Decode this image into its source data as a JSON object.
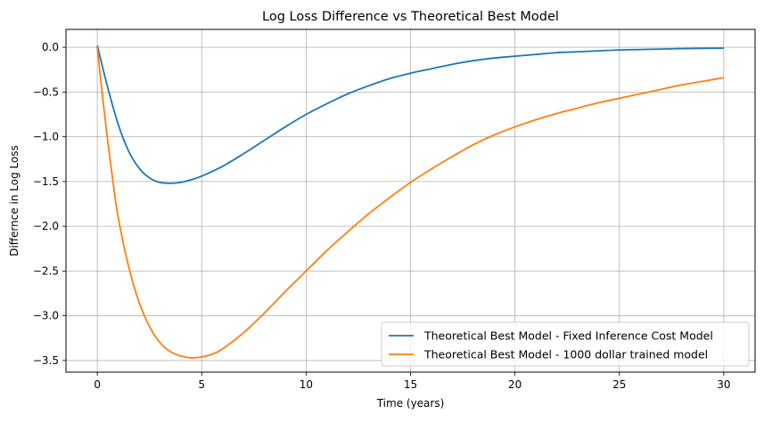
{
  "chart_data": {
    "type": "line",
    "title": "Log Loss Difference vs Theoretical Best Model",
    "xlabel": "Time (years)",
    "ylabel": "Differnce in Log Loss",
    "xlim": [
      -1.5,
      31.5
    ],
    "ylim": [
      -3.63,
      0.2
    ],
    "x_ticks": [
      0,
      5,
      10,
      15,
      20,
      25,
      30
    ],
    "x_tick_labels": [
      "0",
      "5",
      "10",
      "15",
      "20",
      "25",
      "30"
    ],
    "y_ticks": [
      0.0,
      -0.5,
      -1.0,
      -1.5,
      -2.0,
      -2.5,
      -3.0,
      -3.5
    ],
    "y_tick_labels": [
      "0.0",
      "−0.5",
      "−1.0",
      "−1.5",
      "−2.0",
      "−2.5",
      "−3.0",
      "−3.5"
    ],
    "grid": true,
    "legend_position": "lower-right",
    "series": [
      {
        "name": "Theoretical Best Model - Fixed Inference Cost Model",
        "color": "#1f77b4",
        "x": [
          0,
          0.5,
          1,
          1.5,
          2,
          2.5,
          3,
          3.5,
          4,
          4.5,
          5,
          6,
          7,
          8,
          9,
          10,
          11,
          12,
          13,
          14,
          15,
          16,
          17,
          18,
          19,
          20,
          21,
          22,
          23,
          24,
          25,
          26,
          27,
          28,
          29,
          30
        ],
        "y": [
          0.02,
          -0.45,
          -0.86,
          -1.16,
          -1.35,
          -1.46,
          -1.51,
          -1.52,
          -1.51,
          -1.48,
          -1.44,
          -1.33,
          -1.19,
          -1.04,
          -0.89,
          -0.75,
          -0.63,
          -0.52,
          -0.43,
          -0.35,
          -0.29,
          -0.24,
          -0.19,
          -0.15,
          -0.12,
          -0.1,
          -0.08,
          -0.06,
          -0.05,
          -0.04,
          -0.03,
          -0.025,
          -0.02,
          -0.015,
          -0.012,
          -0.01
        ]
      },
      {
        "name": "Theoretical Best Model - 1000 dollar trained model",
        "color": "#ff7f0e",
        "x": [
          0,
          0.25,
          0.5,
          0.75,
          1,
          1.5,
          2,
          2.5,
          3,
          3.5,
          4,
          4.5,
          5,
          5.5,
          6,
          7,
          8,
          9,
          10,
          11,
          12,
          13,
          14,
          15,
          16,
          17,
          18,
          19,
          20,
          21,
          22,
          23,
          24,
          25,
          26,
          27,
          28,
          29,
          30
        ],
        "y": [
          0.0,
          -0.55,
          -1.05,
          -1.5,
          -1.9,
          -2.45,
          -2.85,
          -3.12,
          -3.3,
          -3.4,
          -3.45,
          -3.47,
          -3.46,
          -3.43,
          -3.37,
          -3.19,
          -2.97,
          -2.73,
          -2.5,
          -2.27,
          -2.06,
          -1.86,
          -1.68,
          -1.51,
          -1.36,
          -1.22,
          -1.09,
          -0.98,
          -0.89,
          -0.81,
          -0.74,
          -0.68,
          -0.62,
          -0.57,
          -0.52,
          -0.47,
          -0.42,
          -0.38,
          -0.34
        ]
      }
    ]
  }
}
